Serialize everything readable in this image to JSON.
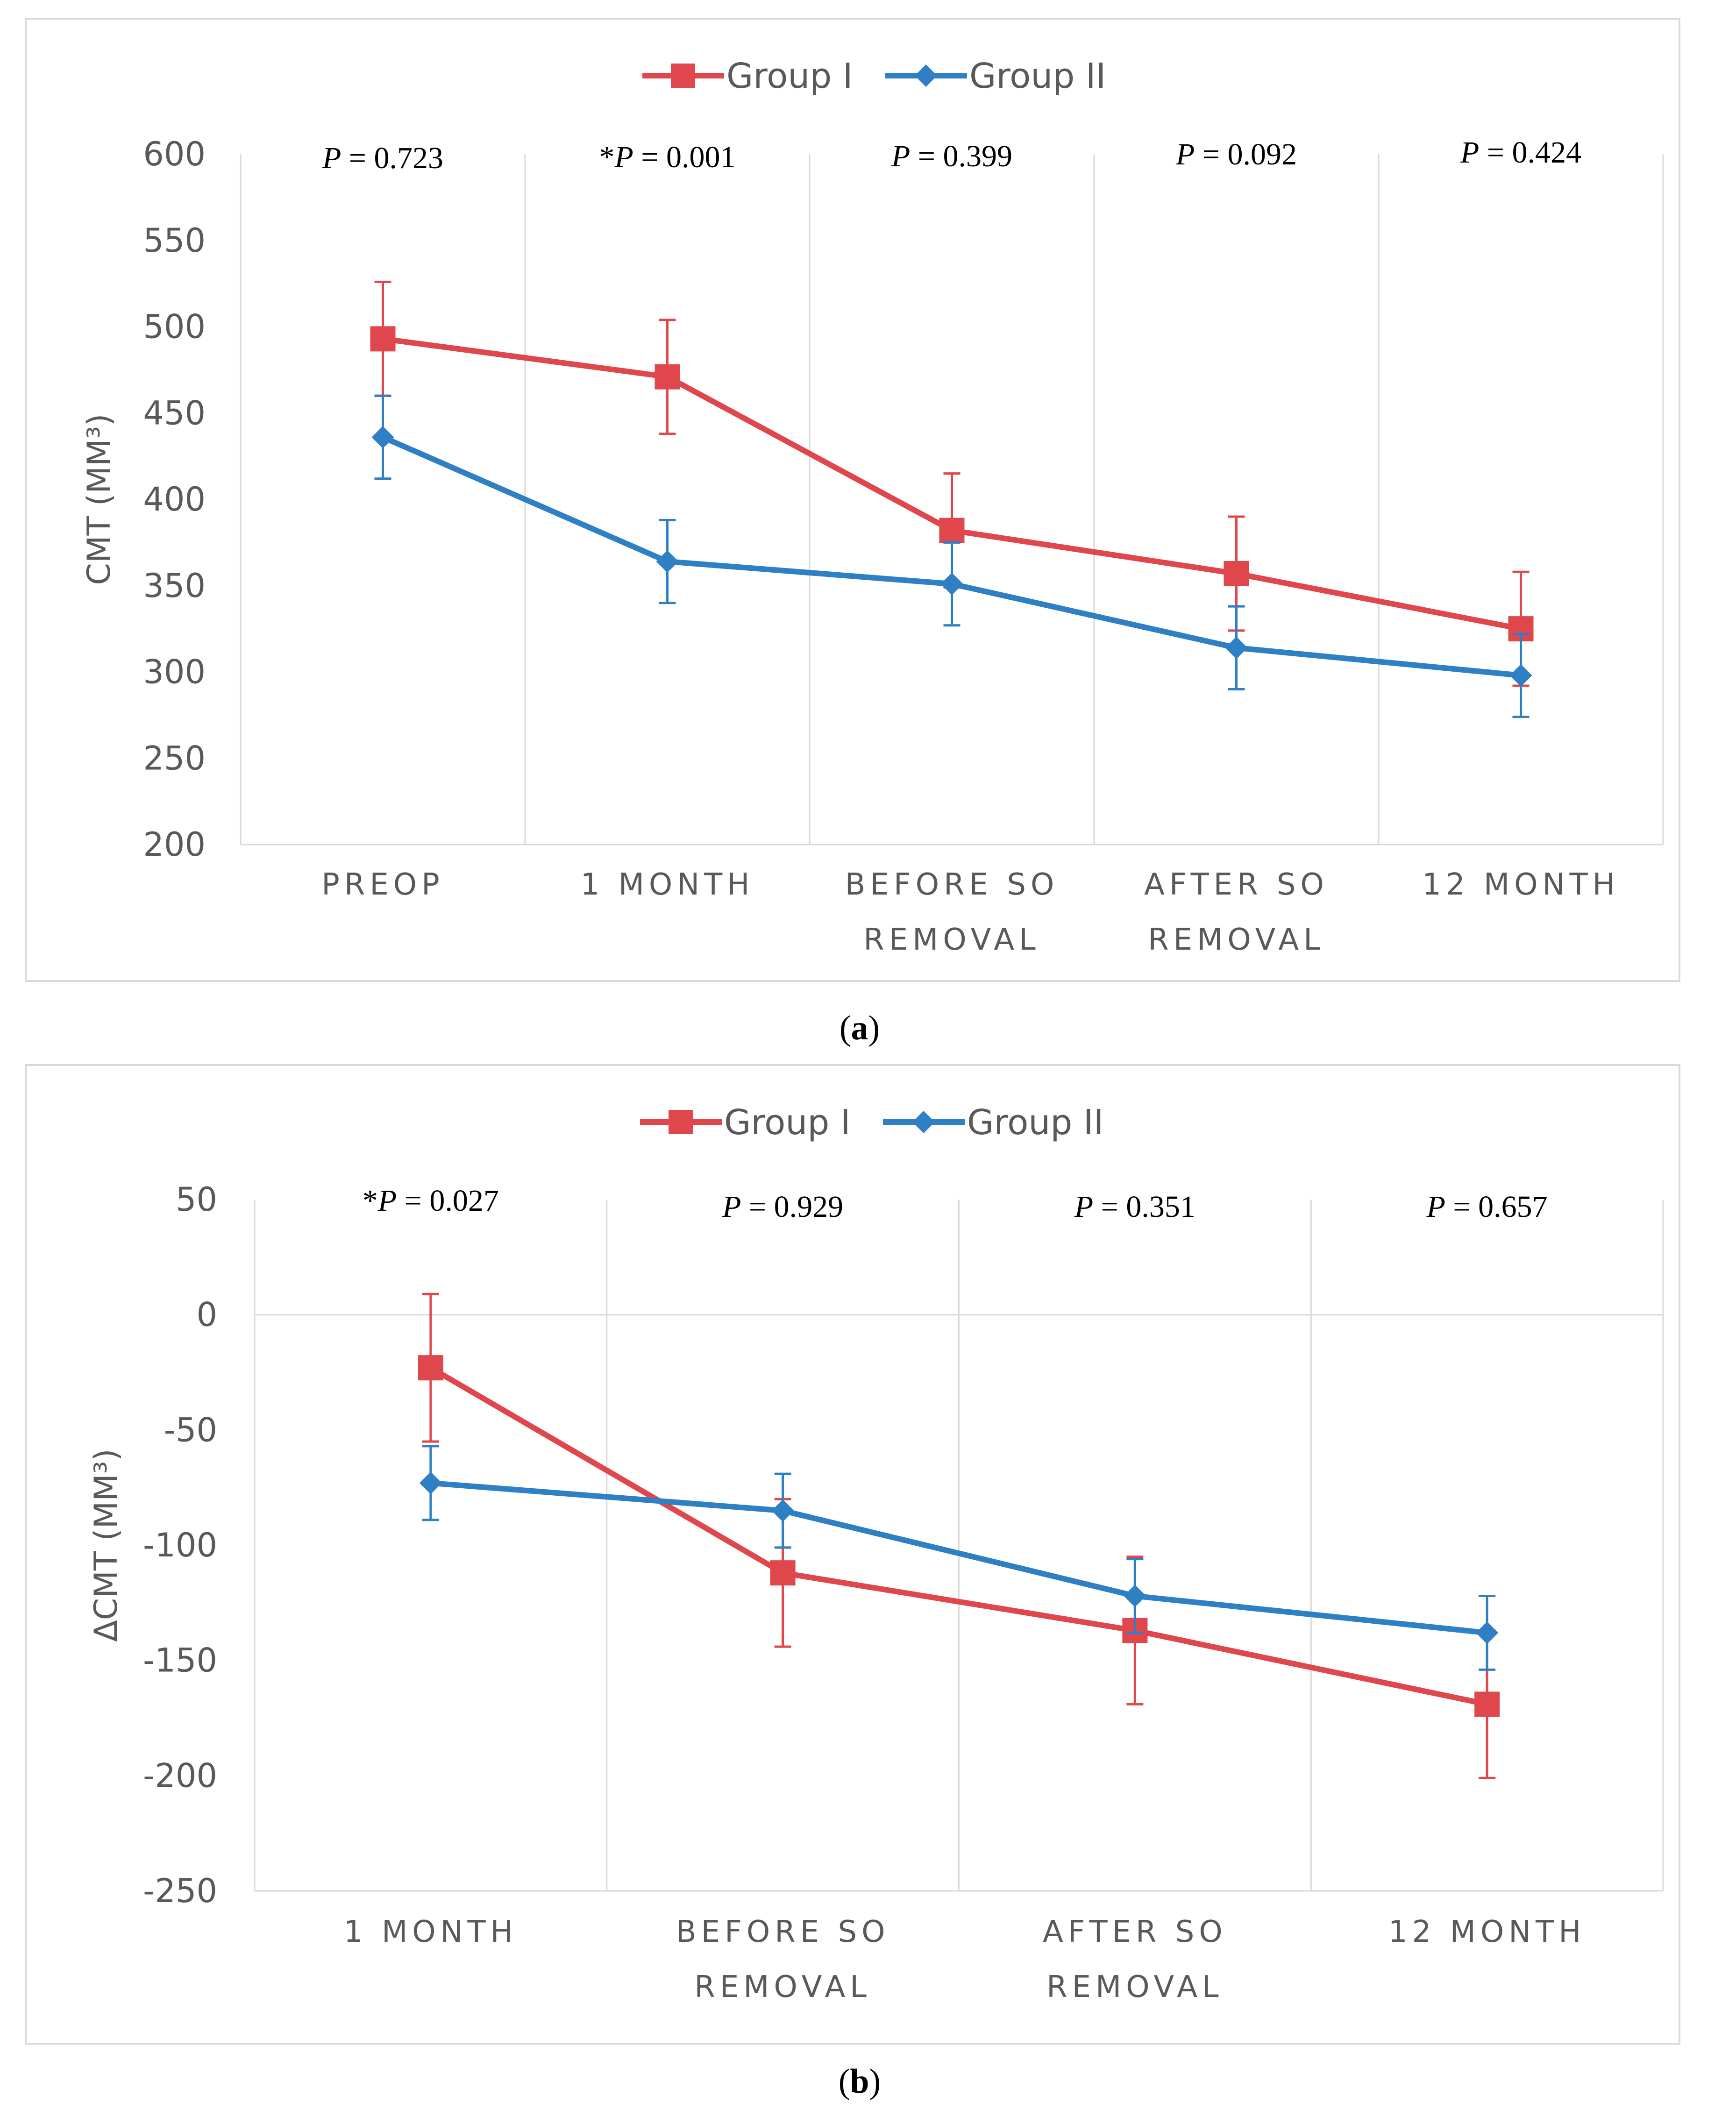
{
  "colors": {
    "group1": "#e0474c",
    "group2": "#2e7fc4"
  },
  "chart_data": [
    {
      "type": "line",
      "panel_label": "a",
      "ylabel": "CMT (MM³)",
      "ylim": [
        200,
        600
      ],
      "yticks": [
        200,
        250,
        300,
        350,
        400,
        450,
        500,
        550,
        600
      ],
      "categories": [
        [
          "PREOP"
        ],
        [
          "1 MONTH"
        ],
        [
          "BEFORE SO",
          "REMOVAL"
        ],
        [
          "AFTER SO",
          "REMOVAL"
        ],
        [
          "12 MONTH"
        ]
      ],
      "p_values": [
        "*P = 0.001",
        "P = 0.399",
        "P = 0.092",
        "P = 0.424"
      ],
      "p_values_all": [
        {
          "star": "",
          "label": "P",
          "value": " = 0.723"
        },
        {
          "star": "*",
          "label": "P",
          "value": " = 0.001"
        },
        {
          "star": "",
          "label": "P",
          "value": " = 0.399"
        },
        {
          "star": "",
          "label": "P",
          "value": " = 0.092"
        },
        {
          "star": "",
          "label": "P",
          "value": " = 0.424"
        }
      ],
      "legend": [
        "Group I",
        "Group II"
      ],
      "series": [
        {
          "name": "Group I",
          "marker": "square",
          "values": [
            493,
            471,
            382,
            357,
            325
          ],
          "err": [
            33,
            33,
            33,
            33,
            33
          ]
        },
        {
          "name": "Group II",
          "marker": "diamond",
          "values": [
            436,
            364,
            351,
            314,
            298
          ],
          "err": [
            24,
            24,
            24,
            24,
            24
          ]
        }
      ]
    },
    {
      "type": "line",
      "panel_label": "b",
      "ylabel": "ΔCMT (MM³)",
      "ylim": [
        -250,
        50
      ],
      "yticks": [
        -250,
        -200,
        -150,
        -100,
        -50,
        0,
        50
      ],
      "categories": [
        [
          "1 MONTH"
        ],
        [
          "BEFORE SO",
          "REMOVAL"
        ],
        [
          "AFTER SO",
          "REMOVAL"
        ],
        [
          "12 MONTH"
        ]
      ],
      "p_values_all": [
        {
          "star": "*",
          "label": "P",
          "value": " = 0.027"
        },
        {
          "star": "",
          "label": "P",
          "value": " = 0.929"
        },
        {
          "star": "",
          "label": "P",
          "value": " = 0.351"
        },
        {
          "star": "",
          "label": "P",
          "value": " = 0.657"
        }
      ],
      "legend": [
        "Group I",
        "Group II"
      ],
      "series": [
        {
          "name": "Group I",
          "marker": "square",
          "values": [
            -23,
            -112,
            -137,
            -169
          ],
          "err": [
            32,
            32,
            32,
            32
          ]
        },
        {
          "name": "Group II",
          "marker": "diamond",
          "values": [
            -73,
            -85,
            -122,
            -138
          ],
          "err": [
            16,
            16,
            16,
            16
          ]
        }
      ]
    }
  ]
}
